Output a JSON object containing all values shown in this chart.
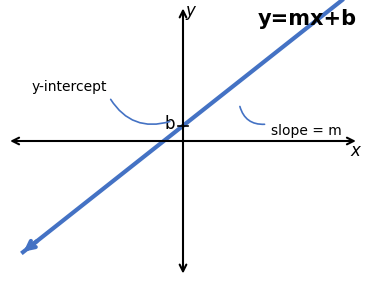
{
  "bg_color": "#ffffff",
  "axis_color": "#000000",
  "line_color": "#4472c4",
  "line_width": 3.0,
  "equation_text": "y=mx+b",
  "equation_fontsize": 15,
  "equation_color": "#000000",
  "slope_label": "slope = m",
  "slope_label_fontsize": 10,
  "yintercept_label": "y-intercept",
  "yintercept_label_fontsize": 10,
  "b_label": "b",
  "b_label_fontsize": 12,
  "axis_label_fontsize": 12,
  "x_label": "x",
  "y_label": "y",
  "xlim": [
    -5,
    5
  ],
  "ylim": [
    -4,
    4
  ],
  "b_value": 0.45,
  "slope": 0.82,
  "figsize": [
    3.66,
    2.82
  ],
  "dpi": 100
}
